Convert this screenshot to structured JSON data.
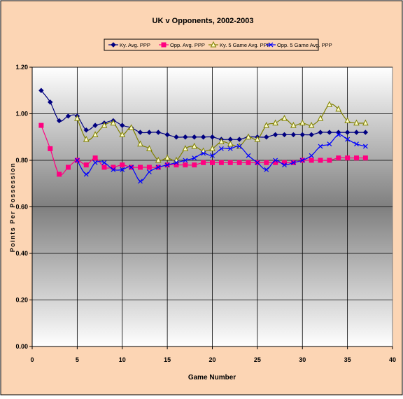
{
  "chart_data": {
    "type": "line",
    "title": "UK v Opponents, 2002-2003",
    "xlabel": "Game Number",
    "ylabel": "Points Per Possession",
    "xlim": [
      0,
      40
    ],
    "ylim": [
      0,
      1.2
    ],
    "x_ticks": [
      "0",
      "5",
      "10",
      "15",
      "20",
      "25",
      "30",
      "35",
      "40"
    ],
    "y_ticks": [
      "0.00",
      "0.20",
      "0.40",
      "0.60",
      "0.80",
      "1.00",
      "1.20"
    ],
    "grid": true,
    "legend_position": "top",
    "colors": {
      "figure_background": "#fcd5b4",
      "plot_gradient_top": "#ffffff",
      "plot_gradient_mid": "#7f7f7f",
      "plot_gradient_bottom": "#ffffff"
    },
    "series": [
      {
        "name": "Ky. Avg. PPP",
        "color": "#000080",
        "marker": "diamond",
        "x": [
          1,
          2,
          3,
          4,
          5,
          6,
          7,
          8,
          9,
          10,
          11,
          12,
          13,
          14,
          15,
          16,
          17,
          18,
          19,
          20,
          21,
          22,
          23,
          24,
          25,
          26,
          27,
          28,
          29,
          30,
          31,
          32,
          33,
          34,
          35,
          36,
          37
        ],
        "values": [
          1.1,
          1.05,
          0.97,
          0.99,
          0.99,
          0.93,
          0.95,
          0.96,
          0.97,
          0.95,
          0.94,
          0.92,
          0.92,
          0.92,
          0.91,
          0.9,
          0.9,
          0.9,
          0.9,
          0.9,
          0.89,
          0.89,
          0.89,
          0.9,
          0.9,
          0.9,
          0.91,
          0.91,
          0.91,
          0.91,
          0.91,
          0.92,
          0.92,
          0.92,
          0.92,
          0.92,
          0.92
        ]
      },
      {
        "name": "Opp. Avg. PPP",
        "color": "#ff0080",
        "marker": "square",
        "x": [
          1,
          2,
          3,
          4,
          5,
          6,
          7,
          8,
          9,
          10,
          11,
          12,
          13,
          14,
          15,
          16,
          17,
          18,
          19,
          20,
          21,
          22,
          23,
          24,
          25,
          26,
          27,
          28,
          29,
          30,
          31,
          32,
          33,
          34,
          35,
          36,
          37
        ],
        "values": [
          0.95,
          0.85,
          0.74,
          0.77,
          0.8,
          0.78,
          0.81,
          0.77,
          0.77,
          0.78,
          0.77,
          0.77,
          0.77,
          0.77,
          0.78,
          0.78,
          0.78,
          0.78,
          0.79,
          0.79,
          0.79,
          0.79,
          0.79,
          0.79,
          0.79,
          0.79,
          0.79,
          0.79,
          0.79,
          0.8,
          0.8,
          0.8,
          0.8,
          0.81,
          0.81,
          0.81,
          0.81
        ]
      },
      {
        "name": "Ky. 5 Game Avg. PPP",
        "color": "#808000",
        "marker": "triangle",
        "x": [
          5,
          6,
          7,
          8,
          9,
          10,
          11,
          12,
          13,
          14,
          15,
          16,
          17,
          18,
          19,
          20,
          21,
          22,
          23,
          24,
          25,
          26,
          27,
          28,
          29,
          30,
          31,
          32,
          33,
          34,
          35,
          36,
          37
        ],
        "values": [
          0.98,
          0.89,
          0.91,
          0.95,
          0.96,
          0.91,
          0.94,
          0.87,
          0.85,
          0.8,
          0.81,
          0.8,
          0.85,
          0.86,
          0.84,
          0.85,
          0.88,
          0.87,
          0.86,
          0.9,
          0.89,
          0.95,
          0.96,
          0.98,
          0.95,
          0.96,
          0.95,
          0.98,
          1.04,
          1.02,
          0.97,
          0.96,
          0.96
        ]
      },
      {
        "name": "Opp. 5 Game Avg. PPP",
        "color": "#0000ff",
        "marker": "x",
        "x": [
          5,
          6,
          7,
          8,
          9,
          10,
          11,
          12,
          13,
          14,
          15,
          16,
          17,
          18,
          19,
          20,
          21,
          22,
          23,
          24,
          25,
          26,
          27,
          28,
          29,
          30,
          31,
          32,
          33,
          34,
          35,
          36,
          37
        ],
        "values": [
          0.8,
          0.74,
          0.79,
          0.79,
          0.76,
          0.76,
          0.77,
          0.71,
          0.75,
          0.77,
          0.78,
          0.79,
          0.8,
          0.81,
          0.83,
          0.82,
          0.85,
          0.85,
          0.86,
          0.82,
          0.79,
          0.76,
          0.8,
          0.78,
          0.79,
          0.8,
          0.82,
          0.86,
          0.87,
          0.91,
          0.89,
          0.87,
          0.86
        ]
      }
    ]
  }
}
